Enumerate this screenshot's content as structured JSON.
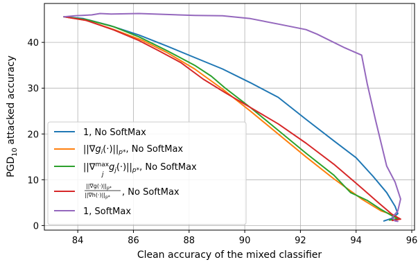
{
  "chart_data": {
    "type": "line",
    "xlabel": "Clean accuracy of the mixed classifier",
    "ylabel_main": "PGD",
    "ylabel_sub": "10",
    "ylabel_rest": " attacked accuracy",
    "xlim": [
      82.8,
      96.1
    ],
    "ylim": [
      -1.0,
      48.5
    ],
    "x_ticks": [
      84,
      86,
      88,
      90,
      92,
      94,
      96
    ],
    "y_ticks": [
      0,
      10,
      20,
      30,
      40
    ],
    "grid": true,
    "legend_position": "lower-left",
    "series": [
      {
        "name": "1, No SoftMax",
        "color": "#1f77b4",
        "points": [
          [
            83.5,
            45.6
          ],
          [
            84.2,
            45.2
          ],
          [
            85.2,
            43.6
          ],
          [
            86.2,
            41.6
          ],
          [
            87.2,
            39.2
          ],
          [
            88.2,
            36.7
          ],
          [
            89.2,
            34.2
          ],
          [
            90.2,
            31.2
          ],
          [
            91.2,
            28.0
          ],
          [
            92.2,
            23.2
          ],
          [
            93.2,
            18.5
          ],
          [
            94.0,
            14.8
          ],
          [
            94.6,
            10.8
          ],
          [
            95.1,
            7.2
          ],
          [
            95.4,
            4.2
          ],
          [
            95.5,
            2.6
          ],
          [
            95.3,
            1.6
          ],
          [
            95.0,
            1.0
          ]
        ]
      },
      {
        "name": "||∇g_i(·)||_p*, No SoftMax",
        "color": "#ff7f0e",
        "points": [
          [
            83.5,
            45.6
          ],
          [
            84.3,
            44.8
          ],
          [
            85.3,
            42.8
          ],
          [
            86.3,
            40.5
          ],
          [
            87.2,
            37.8
          ],
          [
            88.2,
            34.2
          ],
          [
            89.2,
            29.8
          ],
          [
            90.2,
            25.0
          ],
          [
            91.2,
            20.0
          ],
          [
            92.2,
            15.0
          ],
          [
            93.2,
            10.2
          ],
          [
            94.2,
            5.8
          ],
          [
            94.9,
            3.2
          ],
          [
            95.4,
            2.2
          ],
          [
            95.5,
            1.5
          ],
          [
            95.2,
            1.2
          ]
        ]
      },
      {
        "name": "||∇^max_j g_j(·)||_p*, No SoftMax",
        "color": "#2ca02c",
        "points": [
          [
            83.5,
            45.6
          ],
          [
            84.3,
            45.0
          ],
          [
            85.3,
            43.4
          ],
          [
            86.2,
            41.2
          ],
          [
            87.2,
            38.2
          ],
          [
            88.2,
            35.0
          ],
          [
            88.8,
            32.6
          ],
          [
            89.3,
            30.0
          ],
          [
            90.2,
            25.8
          ],
          [
            91.2,
            20.8
          ],
          [
            92.2,
            15.8
          ],
          [
            93.2,
            11.0
          ],
          [
            93.8,
            7.2
          ],
          [
            94.4,
            5.5
          ],
          [
            94.9,
            3.5
          ],
          [
            95.3,
            2.1
          ],
          [
            95.5,
            1.5
          ],
          [
            95.2,
            1.2
          ]
        ]
      },
      {
        "name": "||∇g(·)||_p* / ||∇h(·)||_p*, No SoftMax",
        "color": "#d62728",
        "points": [
          [
            83.5,
            45.6
          ],
          [
            84.3,
            44.8
          ],
          [
            85.3,
            42.7
          ],
          [
            86.2,
            40.4
          ],
          [
            86.9,
            38.2
          ],
          [
            87.7,
            35.6
          ],
          [
            88.5,
            32.0
          ],
          [
            89.3,
            29.0
          ],
          [
            90.2,
            25.8
          ],
          [
            91.2,
            22.2
          ],
          [
            92.2,
            18.0
          ],
          [
            93.2,
            13.4
          ],
          [
            94.2,
            8.2
          ],
          [
            94.8,
            5.0
          ],
          [
            95.3,
            2.4
          ],
          [
            95.6,
            1.4
          ],
          [
            95.3,
            1.1
          ]
        ]
      },
      {
        "name": "1, SoftMax",
        "color": "#9467bd",
        "points": [
          [
            83.5,
            45.6
          ],
          [
            83.9,
            45.8
          ],
          [
            84.5,
            46.0
          ],
          [
            84.8,
            46.3
          ],
          [
            85.2,
            46.2
          ],
          [
            86.2,
            46.3
          ],
          [
            87.2,
            46.1
          ],
          [
            88.2,
            45.9
          ],
          [
            89.2,
            45.8
          ],
          [
            90.2,
            45.2
          ],
          [
            91.2,
            44.0
          ],
          [
            92.2,
            42.8
          ],
          [
            92.6,
            41.8
          ],
          [
            93.6,
            38.8
          ],
          [
            94.2,
            37.2
          ],
          [
            94.4,
            31.0
          ],
          [
            94.7,
            23.0
          ],
          [
            94.9,
            18.0
          ],
          [
            95.1,
            13.0
          ],
          [
            95.4,
            9.5
          ],
          [
            95.6,
            5.8
          ],
          [
            95.5,
            3.2
          ],
          [
            95.3,
            1.8
          ],
          [
            95.4,
            1.0
          ],
          [
            95.5,
            0.9
          ]
        ]
      }
    ]
  },
  "legend": {
    "l1": "1, No SoftMax",
    "l2_nabla": "||∇",
    "l2_g": "g",
    "l2_i": "i",
    "l2_mid": "(·)||",
    "l2_p": "p*",
    "l2_tail": ", No SoftMax",
    "l3_nabla": "||∇",
    "l3_max": "max",
    "l3_j": "j",
    "l3_g": "g",
    "l3_jsub": "j",
    "l3_mid": "(·)||",
    "l3_p": "p*",
    "l3_tail": ", No SoftMax",
    "l4_num": "||∇g(·)||",
    "l4_num_p": "p*",
    "l4_den": "||∇h(·)||",
    "l4_den_p": "p*",
    "l4_tail": ", No SoftMax",
    "l5": "1, SoftMax"
  }
}
